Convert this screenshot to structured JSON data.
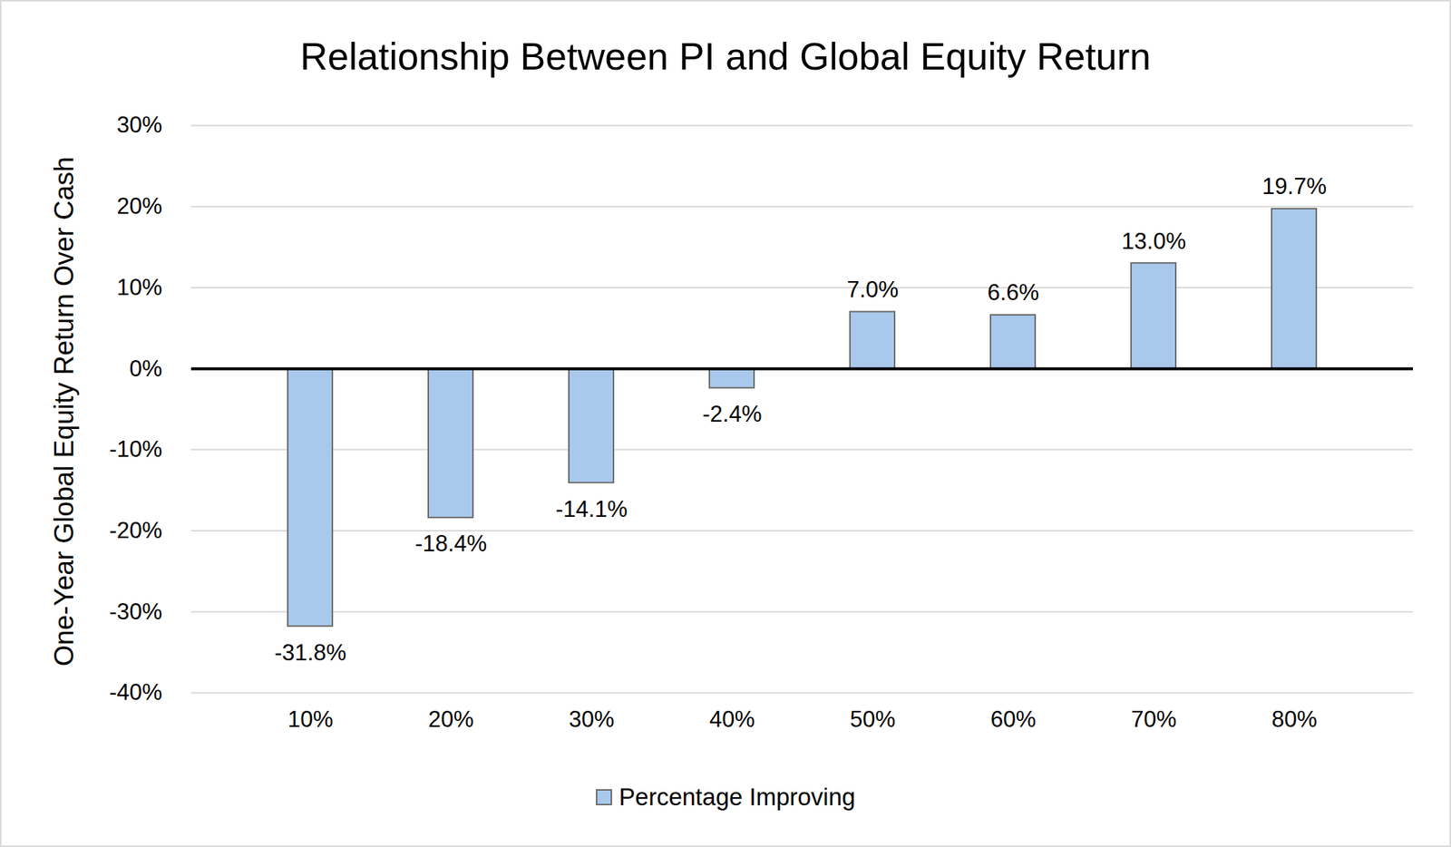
{
  "chart_data": {
    "type": "bar",
    "title": "Relationship Between PI and Global Equity Return",
    "y_label": "One-Year Global Equity Return Over Cash",
    "categories": [
      "10%",
      "20%",
      "30%",
      "40%",
      "50%",
      "60%",
      "70%",
      "80%"
    ],
    "series": [
      {
        "name": "Percentage Improving",
        "color": "#a9c9ec",
        "values": [
          -31.8,
          -18.4,
          -14.1,
          -2.4,
          7.0,
          6.6,
          13.0,
          19.7
        ],
        "value_labels": [
          "-31.8%",
          "-18.4%",
          "-14.1%",
          "-2.4%",
          "7.0%",
          "6.6%",
          "13.0%",
          "19.7%"
        ]
      }
    ],
    "ylim": [
      -40,
      30
    ],
    "yticks": [
      {
        "value": -40,
        "label": "-40%"
      },
      {
        "value": -30,
        "label": "-30%"
      },
      {
        "value": -20,
        "label": "-20%"
      },
      {
        "value": -10,
        "label": "-10%"
      },
      {
        "value": 0,
        "label": "0%"
      },
      {
        "value": 10,
        "label": "10%"
      },
      {
        "value": 20,
        "label": "20%"
      },
      {
        "value": 30,
        "label": "30%"
      }
    ],
    "grid": true,
    "data_labels": true,
    "legend": "bottom"
  }
}
